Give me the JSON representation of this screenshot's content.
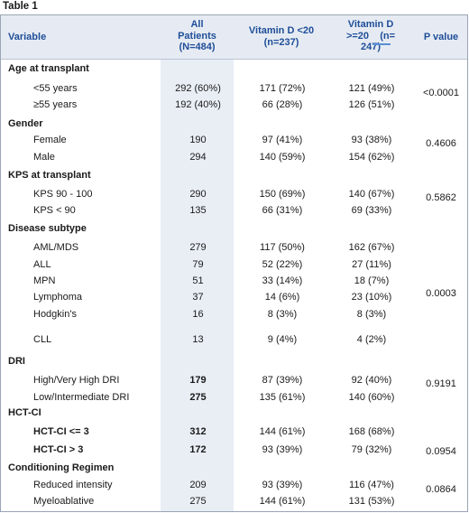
{
  "title": "Table 1",
  "header": {
    "variable": "Variable",
    "all": [
      "All",
      "Patients",
      "(N=484)"
    ],
    "vitd_low": [
      "Vitamin D <20",
      "(n=237)"
    ],
    "vitd_high": [
      "Vitamin D",
      ">=20    (n=",
      "247)"
    ],
    "pvalue": "P value"
  },
  "sections": [
    {
      "title": "Age at transplant",
      "p_value": "<0.0001",
      "rows": [
        {
          "label": "<55 years",
          "all": "292 (60%)",
          "low": "171 (72%)",
          "high": "121 (49%)"
        },
        {
          "label": "≥55 years",
          "all": "192 (40%)",
          "low": "66 (28%)",
          "high": "126 (51%)"
        }
      ]
    },
    {
      "title": "Gender",
      "p_value": "0.4606",
      "rows": [
        {
          "label": "Female",
          "all": "190",
          "low": "97 (41%)",
          "high": "93 (38%)"
        },
        {
          "label": "Male",
          "all": "294",
          "low": "140 (59%)",
          "high": "154 (62%)"
        }
      ]
    },
    {
      "title": "KPS at transplant",
      "p_value": "0.5862",
      "rows": [
        {
          "label": "KPS 90 - 100",
          "all": "290",
          "low": "150 (69%)",
          "high": "140 (67%)"
        },
        {
          "label": "KPS < 90",
          "all": "135",
          "low": "66 (31%)",
          "high": "69 (33%)"
        }
      ]
    },
    {
      "title": "Disease subtype",
      "p_value": "0.0003",
      "rows": [
        {
          "label": "AML/MDS",
          "all": "279",
          "low": "117 (50%)",
          "high": "162 (67%)"
        },
        {
          "label": "ALL",
          "all": "79",
          "low": "52 (22%)",
          "high": "27 (11%)"
        },
        {
          "label": "MPN",
          "all": "51",
          "low": "33 (14%)",
          "high": "18 (7%)"
        },
        {
          "label": "Lymphoma",
          "all": "37",
          "low": "14 (6%)",
          "high": "23 (10%)"
        },
        {
          "label": "Hodgkin's",
          "all": "16",
          "low": "8 (3%)",
          "high": "8 (3%)"
        },
        {
          "label": "CLL",
          "all": "13",
          "low": "9 (4%)",
          "high": "4 (2%)"
        }
      ]
    },
    {
      "title": "DRI",
      "p_value": "0.9191",
      "rows": [
        {
          "label": "High/Very High DRI",
          "all": "179",
          "low": "87 (39%)",
          "high": "92 (40%)"
        },
        {
          "label": "Low/Intermediate DRI",
          "all": "275",
          "low": "135 (61%)",
          "high": "140 (60%)"
        }
      ]
    },
    {
      "title": "HCT-CI",
      "p_value": "0.0954",
      "rows": [
        {
          "label": "HCT-CI <= 3",
          "all": "312",
          "low": "144 (61%)",
          "high": "168 (68%)"
        },
        {
          "label": "HCT-CI > 3",
          "all": "172",
          "low": "93 (39%)",
          "high": "79 (32%)"
        }
      ]
    },
    {
      "title": "Conditioning Regimen",
      "p_value": "0.0864",
      "rows": [
        {
          "label": "Reduced intensity",
          "all": "209",
          "low": "93 (39%)",
          "high": "116 (47%)"
        },
        {
          "label": "Myeloablative",
          "all": "275",
          "low": "144 (61%)",
          "high": "131 (53%)"
        }
      ]
    }
  ]
}
